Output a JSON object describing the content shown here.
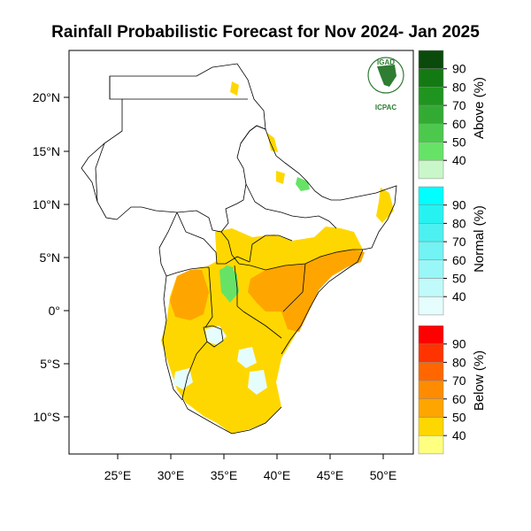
{
  "title": "Rainfall Probabilistic Forecast for Nov 2024- Jan 2025",
  "logo": {
    "top_text": "IGAD",
    "bottom_text": "ICPAC"
  },
  "axes": {
    "lon_ticks": [
      "25°E",
      "30°E",
      "35°E",
      "40°E",
      "45°E",
      "50°E"
    ],
    "lat_ticks": [
      "20°N",
      "15°N",
      "10°N",
      "5°N",
      "0°",
      "5°S",
      "10°S"
    ]
  },
  "colorbars": [
    {
      "title": "Above (%)",
      "levels": [
        "90",
        "80",
        "70",
        "60",
        "50",
        "40"
      ],
      "colors": [
        "#0a4a0a",
        "#137a13",
        "#1f951f",
        "#33ab33",
        "#4cc94c",
        "#66e366",
        "#c9f7c9"
      ]
    },
    {
      "title": "Normal (%)",
      "levels": [
        "90",
        "80",
        "70",
        "60",
        "50",
        "40"
      ],
      "colors": [
        "#00ffff",
        "#26f2f2",
        "#4df0f0",
        "#73f3f3",
        "#99f7f7",
        "#c0fafa",
        "#e6fdfd"
      ]
    },
    {
      "title": "Below (%)",
      "levels": [
        "90",
        "80",
        "70",
        "60",
        "50",
        "40"
      ],
      "colors": [
        "#ff0000",
        "#ff3300",
        "#ff6600",
        "#ff8c00",
        "#ffa500",
        "#ffd700",
        "#ffff80"
      ]
    }
  ],
  "map_colors": {
    "below_50": "#ffd700",
    "below_60": "#ffa500",
    "above_40": "#66e366",
    "normal_40": "#e6fdfd"
  }
}
